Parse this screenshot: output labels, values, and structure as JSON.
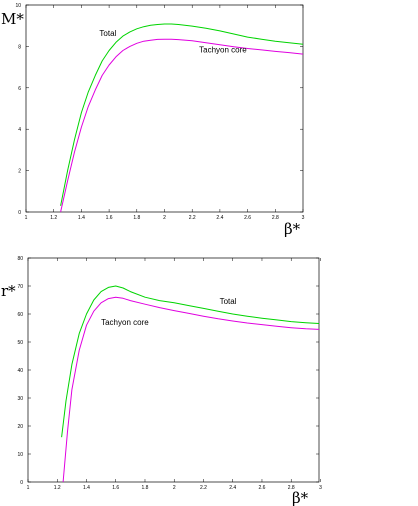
{
  "chart_data": [
    {
      "type": "line",
      "title": "",
      "xlabel": "β*",
      "ylabel": "M*",
      "xlim": [
        1,
        3
      ],
      "ylim": [
        0,
        10
      ],
      "xticks": [
        "1",
        "1.2",
        "1.4",
        "1.6",
        "1.8",
        "2",
        "2.2",
        "2.4",
        "2.6",
        "2.8",
        "3"
      ],
      "yticks": [
        "0",
        "2",
        "4",
        "6",
        "8",
        "10"
      ],
      "grid": false,
      "legend": "none",
      "series": [
        {
          "name": "Total",
          "color": "#00d400",
          "x": [
            1.25,
            1.3,
            1.35,
            1.4,
            1.45,
            1.5,
            1.55,
            1.6,
            1.65,
            1.7,
            1.75,
            1.8,
            1.85,
            1.9,
            1.95,
            2.0,
            2.05,
            2.1,
            2.2,
            2.3,
            2.4,
            2.5,
            2.6,
            2.7,
            2.8,
            2.9,
            3.0
          ],
          "y": [
            0.3,
            2.0,
            3.5,
            4.8,
            5.8,
            6.6,
            7.3,
            7.8,
            8.2,
            8.5,
            8.7,
            8.85,
            8.95,
            9.02,
            9.06,
            9.08,
            9.08,
            9.06,
            8.98,
            8.88,
            8.75,
            8.6,
            8.45,
            8.35,
            8.25,
            8.18,
            8.1
          ]
        },
        {
          "name": "Tachyon core",
          "color": "#e000e0",
          "x": [
            1.25,
            1.3,
            1.35,
            1.4,
            1.45,
            1.5,
            1.55,
            1.6,
            1.65,
            1.7,
            1.75,
            1.8,
            1.85,
            1.9,
            1.95,
            2.0,
            2.05,
            2.1,
            2.2,
            2.3,
            2.4,
            2.5,
            2.6,
            2.7,
            2.8,
            2.9,
            3.0
          ],
          "y": [
            0.0,
            1.5,
            2.9,
            4.1,
            5.1,
            5.9,
            6.6,
            7.1,
            7.5,
            7.8,
            8.0,
            8.15,
            8.25,
            8.3,
            8.34,
            8.35,
            8.35,
            8.33,
            8.27,
            8.18,
            8.08,
            7.98,
            7.9,
            7.83,
            7.76,
            7.7,
            7.63
          ]
        }
      ],
      "annotations": [
        {
          "text": "Total",
          "x": 1.53,
          "y": 8.5
        },
        {
          "text": "Tachyon core",
          "x": 2.25,
          "y": 7.7
        }
      ]
    },
    {
      "type": "line",
      "title": "",
      "xlabel": "β*",
      "ylabel": "r*",
      "xlim": [
        1,
        2.99
      ],
      "ylim": [
        0,
        80
      ],
      "xticks": [
        "1",
        "1.2",
        "1.4",
        "1.6",
        "1.8",
        "2",
        "2.2",
        "2.4",
        "2.6",
        "2.8",
        "3"
      ],
      "yticks": [
        "0",
        "10",
        "20",
        "30",
        "40",
        "50",
        "60",
        "70",
        "80"
      ],
      "grid": false,
      "legend": "none",
      "series": [
        {
          "name": "Total",
          "color": "#00d400",
          "x": [
            1.23,
            1.26,
            1.3,
            1.35,
            1.4,
            1.45,
            1.5,
            1.55,
            1.6,
            1.65,
            1.7,
            1.8,
            1.9,
            2.0,
            2.1,
            2.2,
            2.3,
            2.4,
            2.5,
            2.6,
            2.7,
            2.8,
            2.9,
            2.99
          ],
          "y": [
            16,
            29,
            42,
            53,
            60,
            65,
            68,
            69.5,
            70,
            69.3,
            68,
            66,
            64.8,
            64,
            63,
            62,
            61,
            60,
            59.2,
            58.5,
            57.9,
            57.3,
            56.9,
            56.6
          ]
        },
        {
          "name": "Tachyon core",
          "color": "#e000e0",
          "x": [
            1.24,
            1.27,
            1.3,
            1.35,
            1.4,
            1.45,
            1.5,
            1.55,
            1.6,
            1.65,
            1.7,
            1.8,
            1.9,
            2.0,
            2.1,
            2.2,
            2.3,
            2.4,
            2.5,
            2.6,
            2.7,
            2.8,
            2.9,
            2.99
          ],
          "y": [
            0,
            18,
            33,
            47,
            56,
            61,
            64,
            65.5,
            66,
            65.6,
            64.8,
            63.5,
            62.3,
            61.2,
            60.2,
            59.2,
            58.3,
            57.5,
            56.8,
            56.2,
            55.6,
            55.1,
            54.7,
            54.5
          ]
        }
      ],
      "annotations": [
        {
          "text": "Total",
          "x": 2.31,
          "y": 63.5
        },
        {
          "text": "Tachyon core",
          "x": 1.5,
          "y": 56
        }
      ]
    }
  ]
}
